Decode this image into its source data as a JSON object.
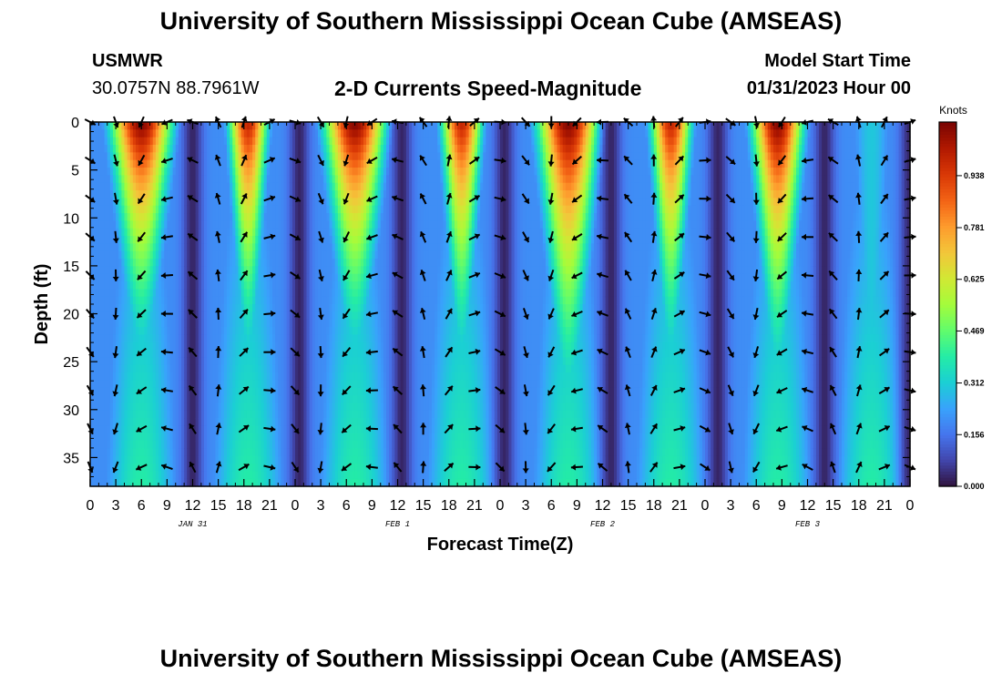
{
  "header": {
    "title": "University of Southern Mississippi Ocean Cube (AMSEAS)",
    "station": "USMWR",
    "coordinates": "30.0757N  88.7961W",
    "chart_title": "2-D Currents Speed-Magnitude",
    "model_start_label": "Model Start Time",
    "model_start_value": "01/31/2023 Hour 00"
  },
  "footer": {
    "title": "University of Southern Mississippi Ocean Cube (AMSEAS)"
  },
  "colors": {
    "colormap": [
      "#30123b",
      "#4145ab",
      "#4675ed",
      "#39a2fc",
      "#1bcfd4",
      "#24eca6",
      "#61fc6c",
      "#a4fc3b",
      "#d1e834",
      "#f3c63a",
      "#fe9b2d",
      "#f36315",
      "#d93806",
      "#b11901",
      "#7a0402"
    ]
  },
  "chart_data": {
    "type": "heatmap",
    "title": "2-D Currents Speed-Magnitude",
    "xlabel": "Forecast Time(Z)",
    "ylabel": "Depth (ft)",
    "x_tick_labels": [
      "0",
      "3",
      "6",
      "9",
      "12",
      "15",
      "18",
      "21",
      "0",
      "3",
      "6",
      "9",
      "12",
      "15",
      "18",
      "21",
      "0",
      "3",
      "6",
      "9",
      "12",
      "15",
      "18",
      "21",
      "0",
      "3",
      "6",
      "9",
      "12",
      "15",
      "18",
      "21",
      "0"
    ],
    "x_hours": [
      0,
      96
    ],
    "date_labels": [
      {
        "hour": 12,
        "label": "JAN 31"
      },
      {
        "hour": 36,
        "label": "FEB 1"
      },
      {
        "hour": 60,
        "label": "FEB 2"
      },
      {
        "hour": 84,
        "label": "FEB 3"
      }
    ],
    "y_ticks": [
      0,
      5,
      10,
      15,
      20,
      25,
      30,
      35
    ],
    "ylim": [
      0,
      38
    ],
    "colorbar": {
      "unit": "Knots",
      "ticks": [
        "0.000",
        "0.156",
        "0.312",
        "0.469",
        "0.625",
        "0.781",
        "0.938"
      ],
      "range": [
        0,
        1.1
      ]
    },
    "speed_peaks": [
      {
        "hour": 6,
        "amp": 1.1,
        "width": 3.6,
        "decay": 0.055
      },
      {
        "hour": 18.5,
        "amp": 1.0,
        "width": 2.3,
        "decay": 0.05
      },
      {
        "hour": 31,
        "amp": 1.1,
        "width": 3.6,
        "decay": 0.055
      },
      {
        "hour": 43.5,
        "amp": 1.0,
        "width": 2.4,
        "decay": 0.05
      },
      {
        "hour": 56,
        "amp": 1.1,
        "width": 3.6,
        "decay": 0.045
      },
      {
        "hour": 68,
        "amp": 1.0,
        "width": 2.4,
        "decay": 0.05
      },
      {
        "hour": 80.5,
        "amp": 1.1,
        "width": 3.0,
        "decay": 0.05
      },
      {
        "hour": 91.5,
        "amp": 0.3,
        "width": 3.0,
        "decay": 0.0
      }
    ],
    "speed_minima_hours": [
      12,
      24.5,
      36.5,
      48.5,
      61,
      73.5,
      86,
      96
    ],
    "arrow_depths_ft": [
      0,
      4,
      8,
      12,
      16,
      20,
      24,
      28,
      32,
      36
    ],
    "arrow_hours": [
      0,
      3,
      6,
      9,
      12,
      15,
      18,
      21,
      24,
      27,
      30,
      33,
      36,
      39,
      42,
      45,
      48,
      51,
      54,
      57,
      60,
      63,
      66,
      69,
      72,
      75,
      78,
      81,
      84,
      87,
      90,
      93,
      96
    ]
  }
}
